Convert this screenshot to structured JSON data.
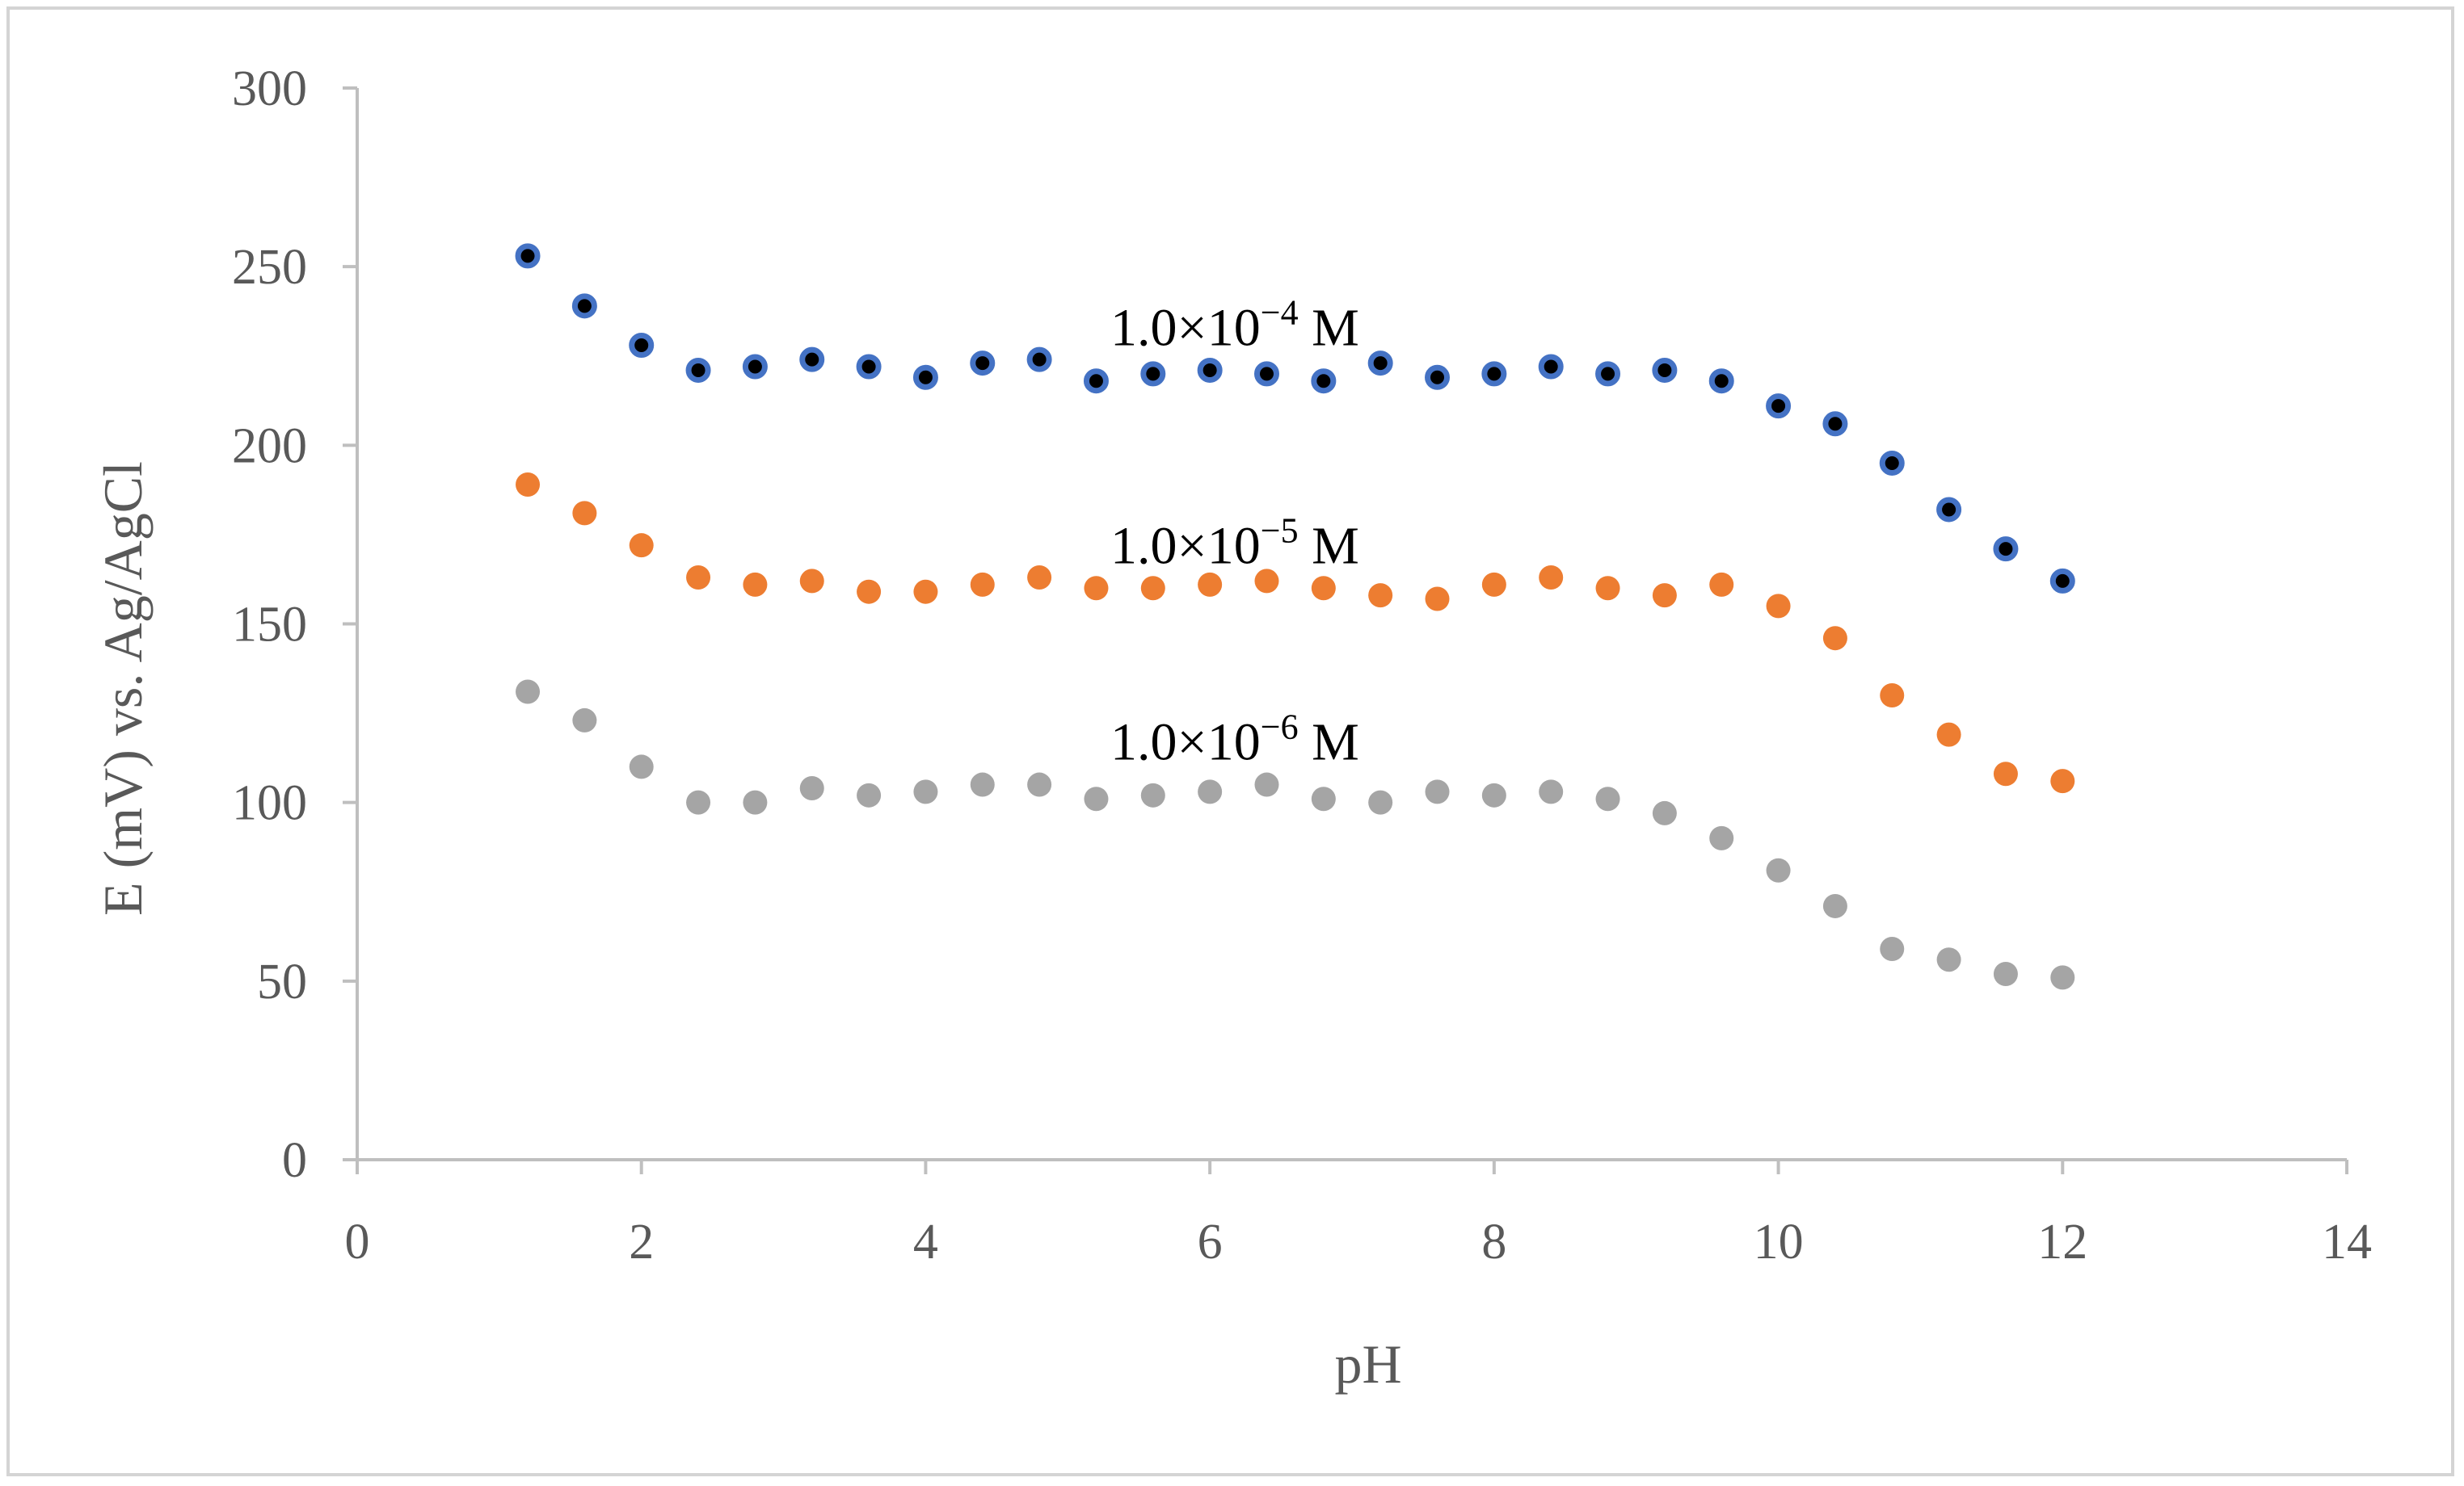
{
  "chart_data": {
    "type": "scatter",
    "title": "",
    "xlabel": "pH",
    "ylabel": "E (mV) vs. Ag/AgCl",
    "xlim": [
      0,
      14
    ],
    "ylim": [
      0,
      300
    ],
    "xticks": [
      0,
      2,
      4,
      6,
      8,
      10,
      12,
      14
    ],
    "yticks": [
      0,
      50,
      100,
      150,
      200,
      250,
      300
    ],
    "grid": false,
    "x": [
      1.2,
      1.6,
      2.0,
      2.4,
      2.8,
      3.2,
      3.6,
      4.0,
      4.4,
      4.8,
      5.2,
      5.6,
      6.0,
      6.4,
      6.8,
      7.2,
      7.6,
      8.0,
      8.4,
      8.8,
      9.2,
      9.6,
      10.0,
      10.4,
      10.8,
      11.2,
      11.6,
      12.0
    ],
    "series": [
      {
        "name": "1.0×10−4 M",
        "label_base": "1.0×10",
        "label_exp": "−4",
        "label_unit": " M",
        "label_pos": [
          5.3,
          228
        ],
        "fill": "#000000",
        "stroke": "#4472c4",
        "values": [
          253,
          239,
          228,
          221,
          222,
          224,
          222,
          219,
          223,
          224,
          218,
          220,
          221,
          220,
          218,
          223,
          219,
          220,
          222,
          220,
          221,
          218,
          211,
          206,
          195,
          182,
          171,
          162
        ]
      },
      {
        "name": "1.0×10−5 M",
        "label_base": "1.0×10",
        "label_exp": "−5",
        "label_unit": " M",
        "label_pos": [
          5.3,
          167
        ],
        "fill": "#ed7d31",
        "stroke": "#ed7d31",
        "values": [
          189,
          181,
          172,
          163,
          161,
          162,
          159,
          159,
          161,
          163,
          160,
          160,
          161,
          162,
          160,
          158,
          157,
          161,
          163,
          160,
          158,
          161,
          155,
          146,
          130,
          119,
          108,
          106
        ]
      },
      {
        "name": "1.0×10−6 M",
        "label_base": "1.0×10",
        "label_exp": "−6",
        "label_unit": " M",
        "label_pos": [
          5.3,
          112
        ],
        "fill": "#a5a5a5",
        "stroke": "#a5a5a5",
        "values": [
          131,
          123,
          110,
          100,
          100,
          104,
          102,
          103,
          105,
          105,
          101,
          102,
          103,
          105,
          101,
          100,
          103,
          102,
          103,
          101,
          97,
          90,
          81,
          71,
          59,
          56,
          52,
          51
        ]
      }
    ],
    "axis_color": "#bfbfbf",
    "tick_color": "#595959"
  }
}
